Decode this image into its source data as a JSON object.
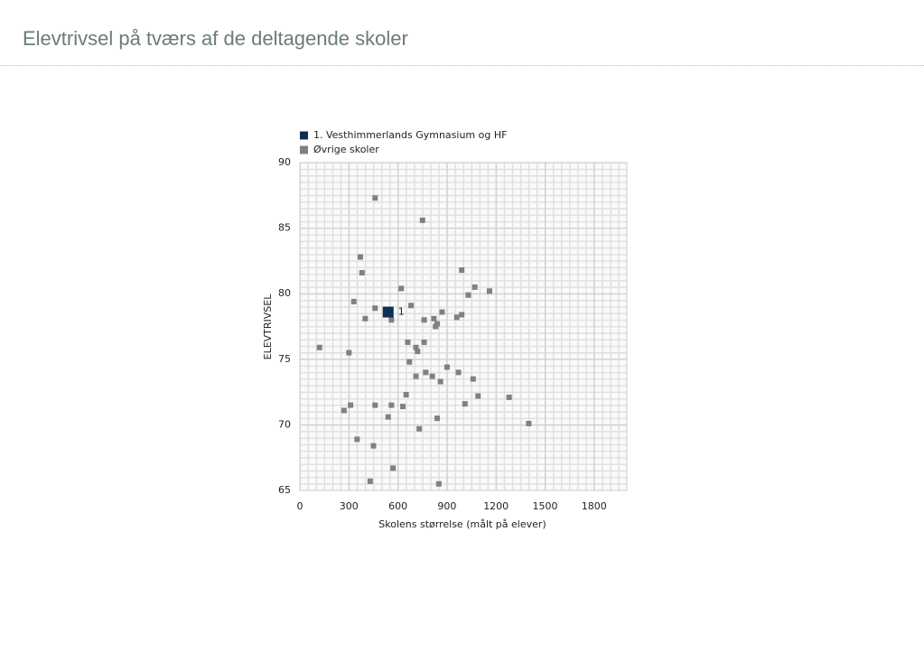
{
  "page_title": "Elevtrivsel på tværs af de deltagende skoler",
  "chart_data": {
    "type": "scatter",
    "xlabel": "Skolens størrelse (målt på elever)",
    "ylabel": "ELEVTRIVSEL",
    "xlim": [
      0,
      2000
    ],
    "xticks": [
      0,
      300,
      600,
      900,
      1200,
      1500,
      1800
    ],
    "ylim": [
      65,
      90
    ],
    "yticks": [
      65,
      70,
      75,
      80,
      85,
      90
    ],
    "legend": "top-left",
    "series": [
      {
        "name": "1. Vesthimmerlands Gymnasium og HF",
        "color": "#0d2f55",
        "x": [
          540
        ],
        "values": [
          78.6
        ],
        "point_labels": [
          "1"
        ]
      },
      {
        "name": "Øvrige skoler",
        "color": "#808080",
        "x": [
          460,
          750,
          370,
          380,
          990,
          1070,
          1160,
          1030,
          620,
          330,
          680,
          460,
          870,
          990,
          960,
          400,
          560,
          760,
          820,
          840,
          830,
          120,
          660,
          760,
          710,
          720,
          300,
          670,
          900,
          970,
          770,
          810,
          710,
          860,
          1060,
          650,
          1090,
          1280,
          1400,
          310,
          270,
          460,
          560,
          630,
          1010,
          540,
          840,
          730,
          350,
          450,
          570,
          430,
          850
        ],
        "values": [
          87.3,
          85.6,
          82.8,
          81.6,
          81.8,
          80.5,
          80.2,
          79.9,
          80.4,
          79.4,
          79.1,
          78.9,
          78.6,
          78.4,
          78.2,
          78.1,
          78.0,
          78.0,
          78.1,
          77.7,
          77.5,
          75.9,
          76.3,
          76.3,
          75.9,
          75.6,
          75.5,
          74.8,
          74.4,
          74.0,
          74.0,
          73.7,
          73.7,
          73.3,
          73.5,
          72.3,
          72.2,
          72.1,
          70.1,
          71.5,
          71.1,
          71.5,
          71.5,
          71.4,
          71.6,
          70.6,
          70.5,
          69.7,
          68.9,
          68.4,
          66.7,
          65.7,
          65.5
        ]
      }
    ]
  }
}
